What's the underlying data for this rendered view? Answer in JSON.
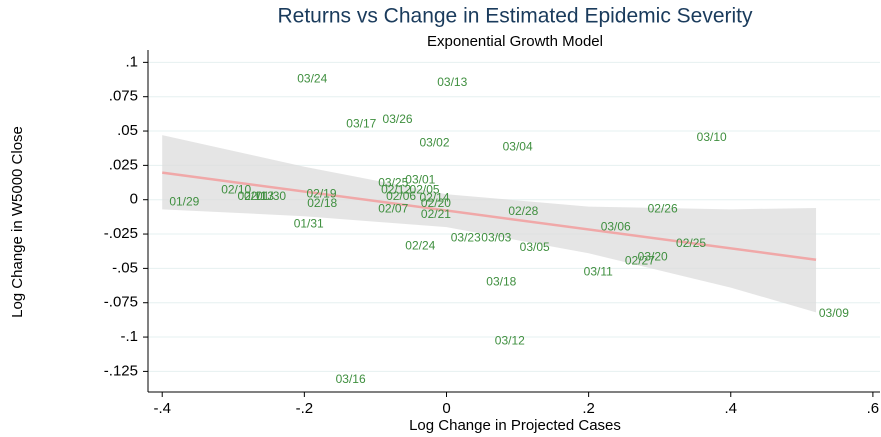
{
  "chart_data": {
    "type": "scatter",
    "title": "Returns vs Change in Estimated Epidemic Severity",
    "subtitle": "Exponential Growth Model",
    "x_label": "Log Change in Projected Cases",
    "y_label": "Log Change in W5000 Close",
    "color": "#3f8f3f",
    "point_labels": [
      "03/24",
      "03/13",
      "03/17",
      "03/26",
      "03/02",
      "03/04",
      "03/10",
      "01/29",
      "02/10",
      "02/11",
      "02/13",
      "01/30",
      "02/19",
      "02/18",
      "01/31",
      "03/25",
      "03/01",
      "02/12",
      "02/05",
      "02/06",
      "02/14",
      "02/20",
      "02/07",
      "02/21",
      "02/28",
      "02/24",
      "03/23",
      "03/03",
      "03/05",
      "03/06",
      "02/26",
      "02/25",
      "02/27",
      "03/20",
      "03/11",
      "03/18",
      "03/12",
      "03/09",
      "03/16"
    ],
    "x": [
      -0.21,
      -0.013,
      -0.141,
      -0.09,
      -0.038,
      0.079,
      0.352,
      -0.39,
      -0.317,
      -0.294,
      -0.285,
      -0.268,
      -0.197,
      -0.196,
      -0.215,
      -0.096,
      -0.058,
      -0.092,
      -0.052,
      -0.085,
      -0.038,
      -0.036,
      -0.096,
      -0.036,
      0.087,
      -0.058,
      0.006,
      0.049,
      0.103,
      0.217,
      0.283,
      0.323,
      0.251,
      0.269,
      0.193,
      0.056,
      0.068,
      0.524,
      -0.156
    ],
    "values": [
      0.0875,
      0.085,
      0.055,
      0.058,
      0.041,
      0.038,
      0.045,
      -0.002,
      0.007,
      0.002,
      0.002,
      0.002,
      0.004,
      -0.003,
      -0.018,
      0.012,
      0.014,
      0.007,
      0.007,
      0.002,
      0.001,
      -0.003,
      -0.007,
      -0.011,
      -0.009,
      -0.034,
      -0.028,
      -0.028,
      -0.035,
      -0.02,
      -0.007,
      -0.032,
      -0.045,
      -0.042,
      -0.053,
      -0.06,
      -0.103,
      -0.083,
      -0.131
    ],
    "fit": {
      "color": "#f0a8a8",
      "x": [
        -0.4,
        0.52
      ],
      "values": [
        0.0197,
        -0.0437
      ]
    },
    "band": {
      "color": "#dcdcdc",
      "x": [
        -0.4,
        -0.2,
        0,
        0.2,
        0.4,
        0.52
      ],
      "upper": [
        0.047,
        0.024,
        0.004,
        -0.005,
        -0.007,
        -0.006
      ],
      "lower": [
        -0.007,
        -0.012,
        -0.02,
        -0.039,
        -0.064,
        -0.082
      ]
    },
    "xlim": [
      -0.42,
      0.61
    ],
    "ylim": [
      -0.14,
      0.109
    ],
    "xticks": [
      {
        "value": -0.4,
        "label": "-.4"
      },
      {
        "value": -0.2,
        "label": "-.2"
      },
      0,
      {
        "value": 0.2,
        "label": ".2"
      },
      {
        "value": 0.4,
        "label": ".4"
      },
      {
        "value": 0.6,
        "label": ".6"
      }
    ],
    "yticks": [
      {
        "value": 0.1,
        "label": ".1"
      },
      {
        "value": 0.075,
        "label": ".075"
      },
      {
        "value": 0.05,
        "label": ".05"
      },
      {
        "value": 0.025,
        "label": ".025"
      },
      0,
      {
        "value": -0.025,
        "label": "-.025"
      },
      {
        "value": -0.05,
        "label": "-.05"
      },
      {
        "value": -0.075,
        "label": "-.075"
      },
      {
        "value": -0.1,
        "label": "-.1"
      },
      {
        "value": -0.125,
        "label": "-.125"
      }
    ],
    "grid": true
  }
}
